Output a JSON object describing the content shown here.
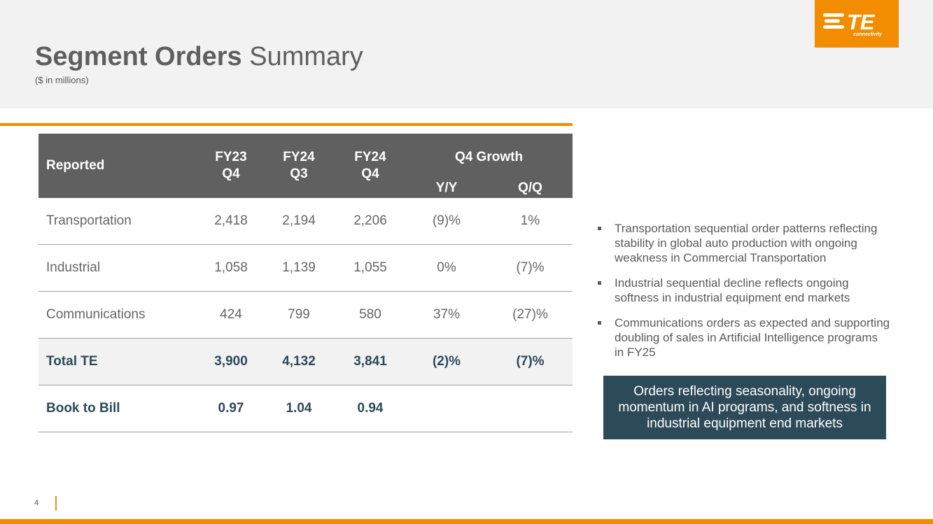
{
  "header": {
    "title_bold": "Segment Orders",
    "title_light": "Summary",
    "subtitle": "($ in millions)"
  },
  "logo": {
    "text": "TE",
    "sub": "connectivity",
    "color": "#f28c00",
    "icon": "te-logo-icon"
  },
  "table": {
    "headers": {
      "reported": "Reported",
      "col1_line1": "FY23",
      "col1_line2": "Q4",
      "col2_line1": "FY24",
      "col2_line2": "Q3",
      "col3_line1": "FY24",
      "col3_line2": "Q4",
      "growth": "Q4 Growth",
      "yy": "Y/Y",
      "qq": "Q/Q"
    },
    "rows": [
      {
        "label": "Transportation",
        "fy23q4": "2,418",
        "fy24q3": "2,194",
        "fy24q4": "2,206",
        "yy": "(9)%",
        "qq": "1%"
      },
      {
        "label": "Industrial",
        "fy23q4": "1,058",
        "fy24q3": "1,139",
        "fy24q4": "1,055",
        "yy": "0%",
        "qq": "(7)%"
      },
      {
        "label": "Communications",
        "fy23q4": "424",
        "fy24q3": "799",
        "fy24q4": "580",
        "yy": "37%",
        "qq": "(27)%"
      },
      {
        "label": "Total TE",
        "fy23q4": "3,900",
        "fy24q3": "4,132",
        "fy24q4": "3,841",
        "yy": "(2)%",
        "qq": "(7)%"
      },
      {
        "label": "Book to Bill",
        "fy23q4": "0.97",
        "fy24q3": "1.04",
        "fy24q4": "0.94",
        "yy": "",
        "qq": ""
      }
    ]
  },
  "bullets": [
    "Transportation sequential order patterns reflecting stability in global auto production with ongoing weakness in Commercial Transportation",
    "Industrial sequential decline reflects ongoing softness in industrial equipment end markets",
    "Communications orders as expected and supporting doubling of sales in Artificial Intelligence programs in FY25"
  ],
  "callout": "Orders reflecting seasonality, ongoing momentum in AI programs, and softness in industrial equipment end markets",
  "footer": {
    "page_number": "4"
  },
  "colors": {
    "accent": "#f28c00",
    "header_bg": "#606060",
    "callout_bg": "#2d4a58",
    "bold_text": "#2c4a5a"
  }
}
